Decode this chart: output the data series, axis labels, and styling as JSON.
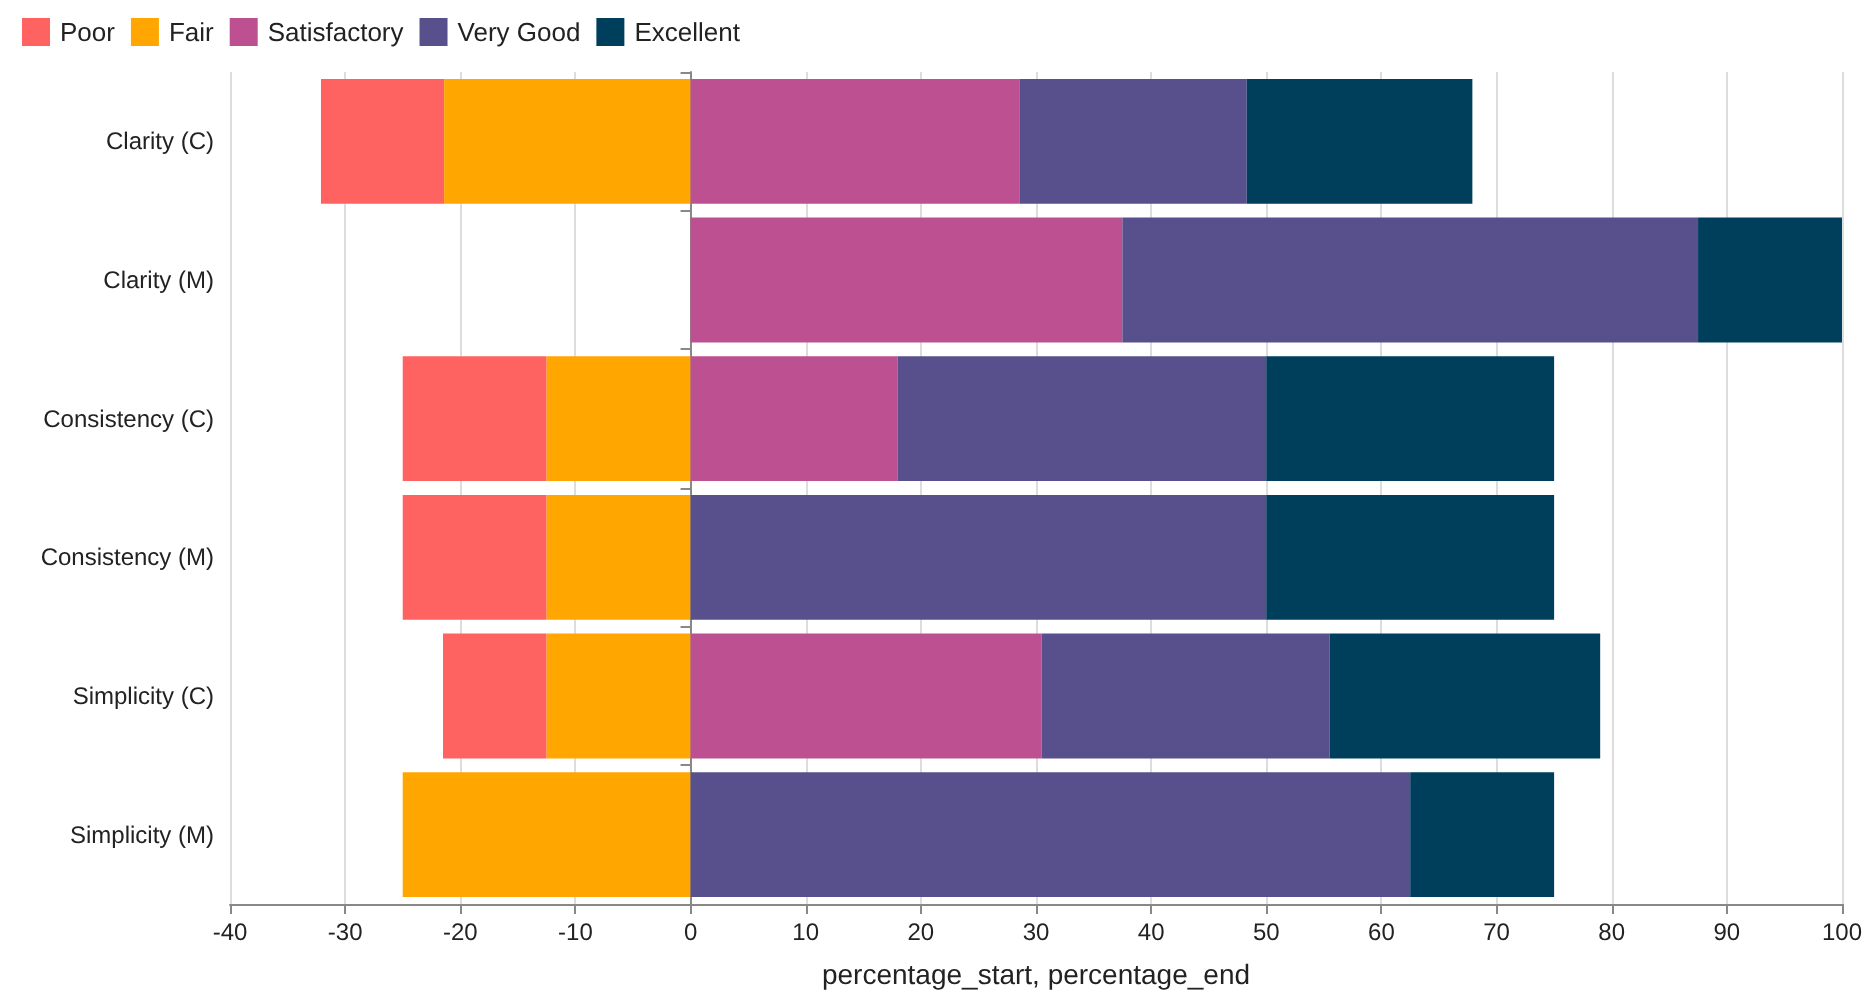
{
  "chart_data": {
    "type": "bar",
    "orientation": "horizontal",
    "xlabel": "percentage_start, percentage_end",
    "categories": [
      "Clarity (C)",
      "Clarity (M)",
      "Consistency (C)",
      "Consistency (M)",
      "Simplicity (C)",
      "Simplicity (M)"
    ],
    "series": [
      {
        "name": "Poor",
        "color": "#ff6361",
        "values": [
          10.7,
          null,
          12.5,
          12.5,
          9,
          null
        ],
        "base": [
          -32.1,
          null,
          -25,
          -25,
          -21.5,
          null
        ]
      },
      {
        "name": "Fair",
        "color": "#ffa600",
        "values": [
          21.4,
          null,
          12.5,
          12.5,
          12.5,
          25
        ],
        "base": [
          -21.4,
          null,
          -12.5,
          -12.5,
          -12.5,
          -25
        ]
      },
      {
        "name": "Satisfactory",
        "color": "#bc5090",
        "values": [
          28.6,
          37.5,
          18,
          null,
          30.5,
          null
        ],
        "base": [
          0,
          0,
          0,
          null,
          0,
          null
        ]
      },
      {
        "name": "Very Good",
        "color": "#58508d",
        "values": [
          19.7,
          50,
          32,
          50,
          25,
          62.5
        ],
        "base": [
          28.6,
          37.5,
          18,
          0,
          30.5,
          0
        ]
      },
      {
        "name": "Excellent",
        "color": "#003f5c",
        "values": [
          19.6,
          12.5,
          25,
          25,
          23.5,
          12.5
        ],
        "base": [
          48.3,
          87.5,
          50,
          50,
          55.5,
          62.5
        ]
      }
    ],
    "xlim": [
      -40,
      100
    ],
    "xticks": [
      -40,
      -30,
      -20,
      -10,
      0,
      10,
      20,
      30,
      40,
      50,
      60,
      70,
      80,
      90,
      100
    ],
    "grid": "x",
    "legend": "top left"
  }
}
